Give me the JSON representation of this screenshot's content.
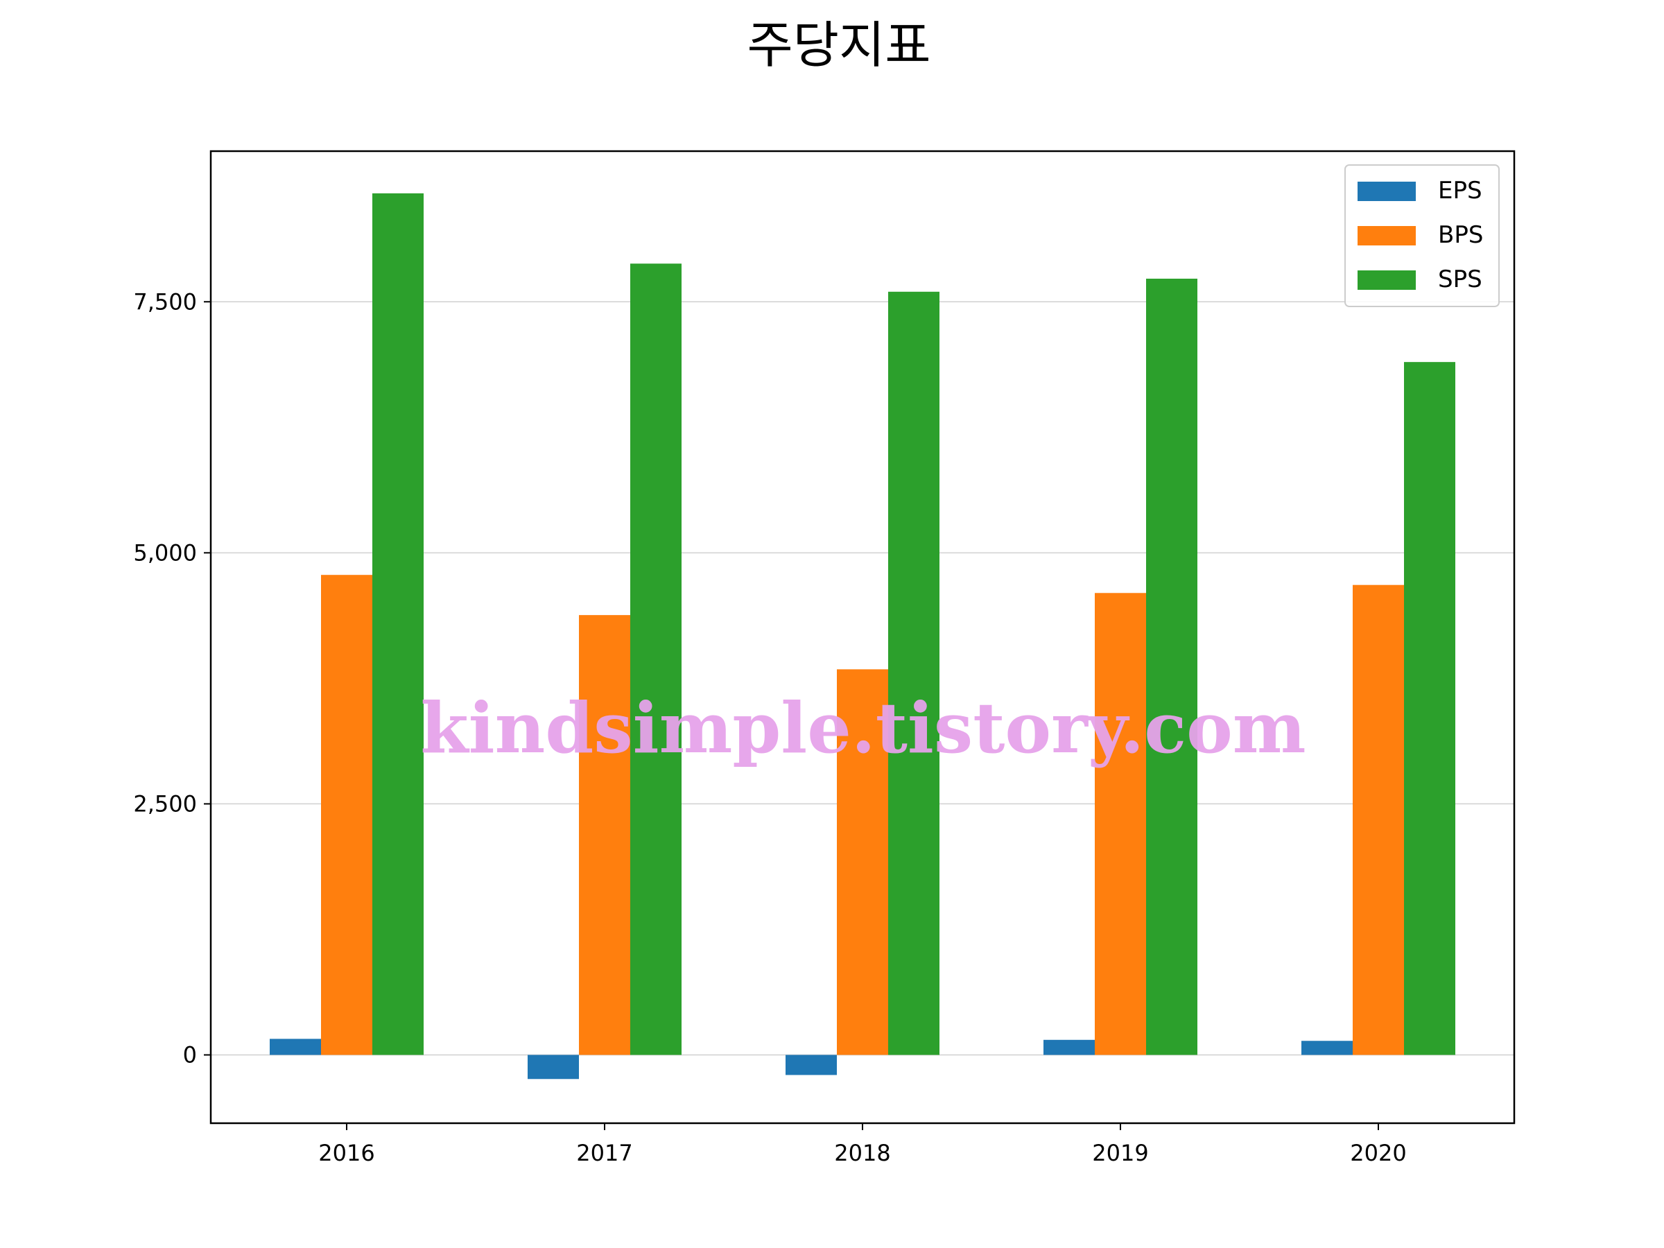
{
  "chart_data": {
    "type": "bar",
    "title": "주당지표",
    "categories": [
      "2016",
      "2017",
      "2018",
      "2019",
      "2020"
    ],
    "series": [
      {
        "name": "EPS",
        "color": "#1f77b4",
        "values": [
          160,
          -240,
          -200,
          150,
          140
        ]
      },
      {
        "name": "BPS",
        "color": "#ff7f0e",
        "values": [
          4780,
          4380,
          3840,
          4600,
          4680
        ]
      },
      {
        "name": "SPS",
        "color": "#2ca02c",
        "values": [
          8580,
          7880,
          7600,
          7730,
          6900
        ]
      }
    ],
    "ylim": [
      -680,
      9000
    ],
    "yticks": [
      0,
      2500,
      5000,
      7500
    ],
    "ytick_labels": [
      "0",
      "2,500",
      "5,000",
      "7,500"
    ],
    "grid": "horizontal",
    "legend": "top-right"
  },
  "watermark": "kindsimple.tistory.com"
}
